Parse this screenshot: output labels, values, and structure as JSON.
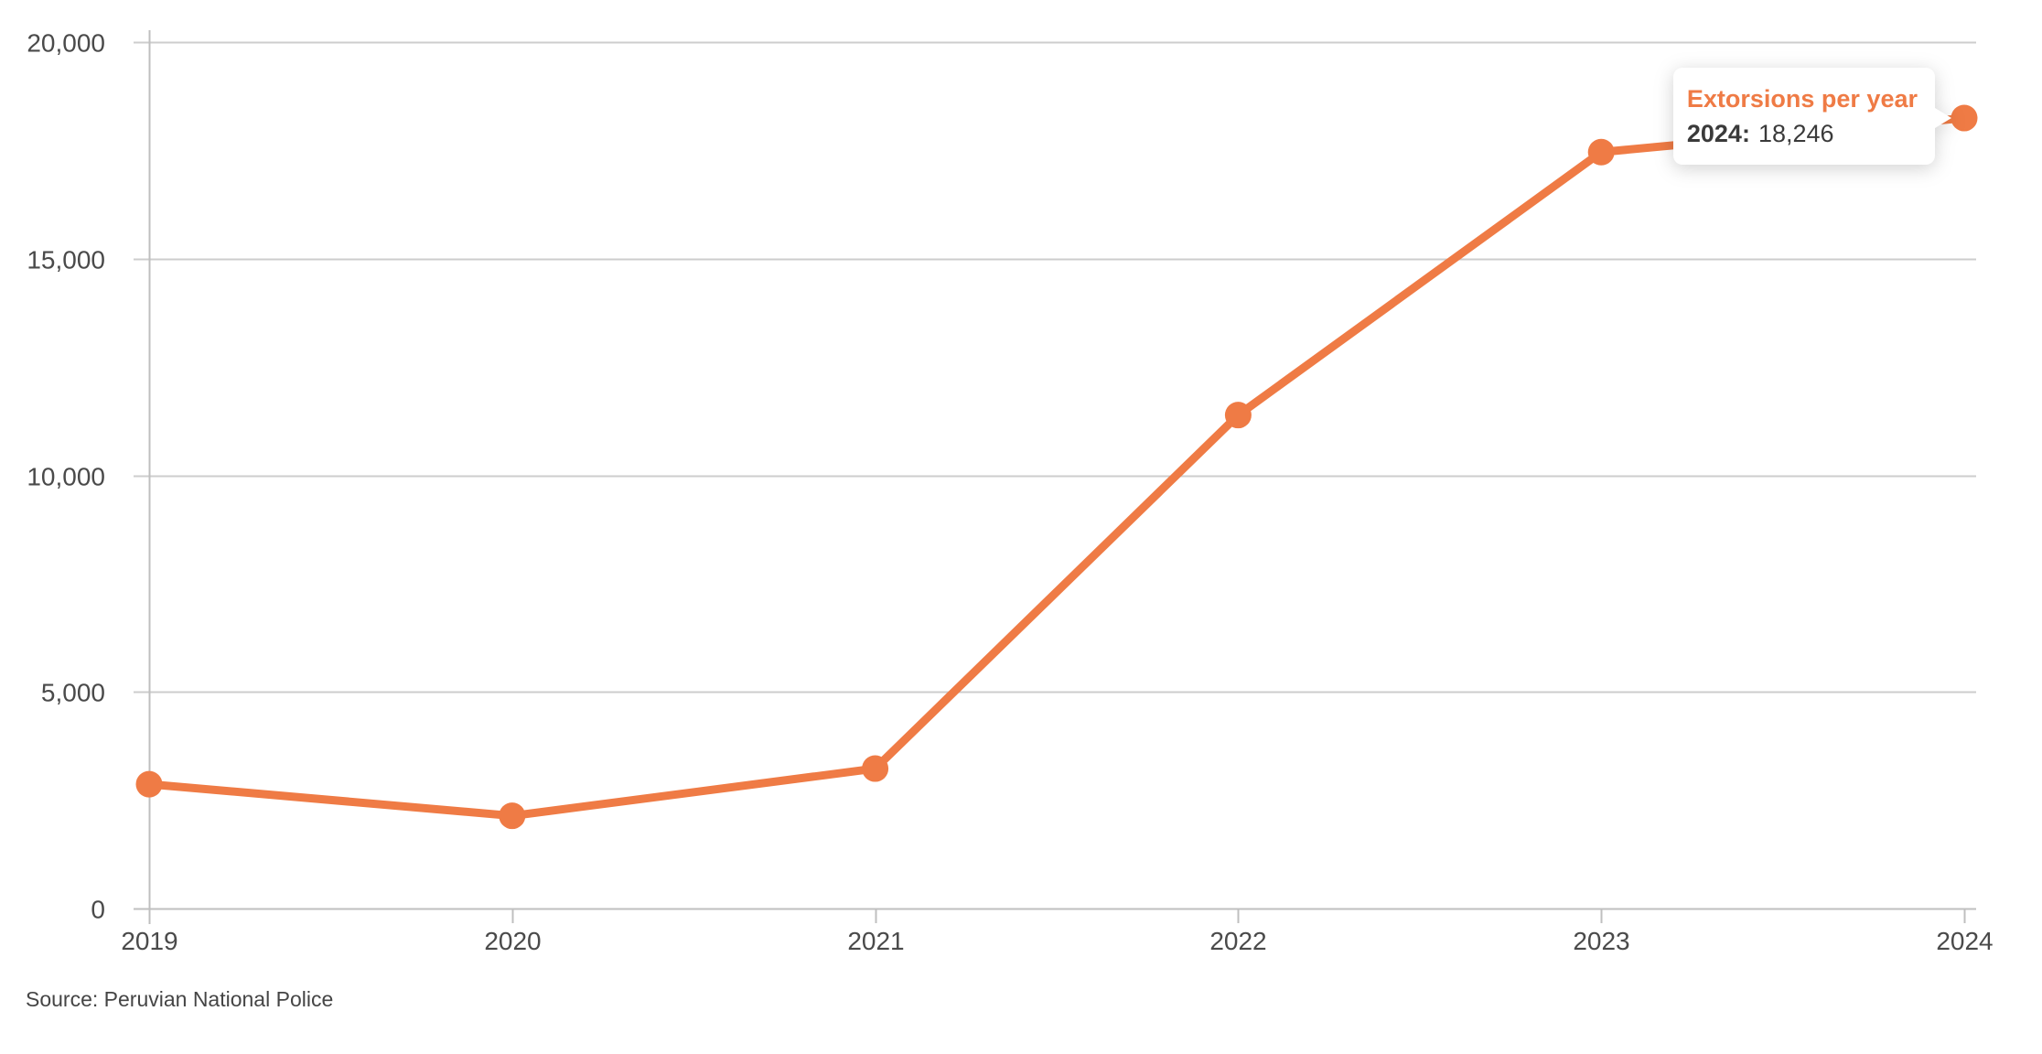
{
  "chart_data": {
    "type": "line",
    "title": "Extorsions per year",
    "categories": [
      "2019",
      "2020",
      "2021",
      "2022",
      "2023",
      "2024"
    ],
    "series": [
      {
        "name": "Extorsions per year",
        "values": [
          2870,
          2140,
          3230,
          11390,
          17460,
          18246
        ]
      }
    ],
    "xlabel": "",
    "ylabel": "",
    "ylim": [
      0,
      20000
    ],
    "y_tick_values": [
      0,
      5000,
      10000,
      15000,
      20000
    ],
    "y_tick_labels": [
      "0",
      "5,000",
      "10,000",
      "15,000",
      "20,000"
    ],
    "grid": "horizontal-gridlines-on",
    "legend_position": "none",
    "line_color": "#EF7B45",
    "point_color": "#EF7B45",
    "grid_color": "#CDCDCD",
    "axis_color": "#BFBFBF",
    "tick_label_color": "#4A4A4A"
  },
  "tooltip": {
    "title": "Extorsions per year",
    "label": "2024:",
    "value": "18,246"
  },
  "footer": {
    "source": "Source: Peruvian National Police"
  }
}
